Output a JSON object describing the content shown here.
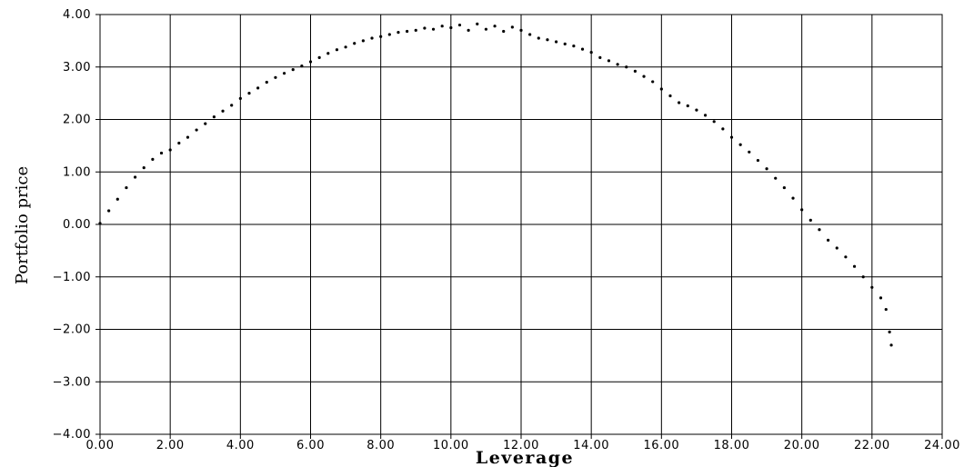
{
  "chart_data": {
    "type": "scatter",
    "title": "",
    "xlabel": "Leverage",
    "ylabel": "Portfolio  price",
    "xlim": [
      0,
      24
    ],
    "ylim": [
      -4,
      4
    ],
    "x_ticks": [
      0,
      2,
      4,
      6,
      8,
      10,
      12,
      14,
      16,
      18,
      20,
      22,
      24
    ],
    "y_ticks": [
      -4,
      -3,
      -2,
      -1,
      0,
      1,
      2,
      3,
      4
    ],
    "x_tick_labels": [
      "0.00",
      "2.00",
      "4.00",
      "6.00",
      "8.00",
      "10.00",
      "12.00",
      "14.00",
      "16.00",
      "18.00",
      "20.00",
      "22.00",
      "24.00"
    ],
    "y_tick_labels": [
      "−4.00",
      "−3.00",
      "−2.00",
      "−1.00",
      "0.00",
      "1.00",
      "2.00",
      "3.00",
      "4.00"
    ],
    "grid": true,
    "legend": "none",
    "point_color": "#000000",
    "points": [
      [
        0.0,
        0.02
      ],
      [
        0.25,
        0.26
      ],
      [
        0.5,
        0.48
      ],
      [
        0.75,
        0.7
      ],
      [
        1.0,
        0.9
      ],
      [
        1.25,
        1.08
      ],
      [
        1.5,
        1.24
      ],
      [
        1.75,
        1.36
      ],
      [
        2.0,
        1.42
      ],
      [
        2.25,
        1.55
      ],
      [
        2.5,
        1.66
      ],
      [
        2.75,
        1.8
      ],
      [
        3.0,
        1.92
      ],
      [
        3.25,
        2.05
      ],
      [
        3.5,
        2.16
      ],
      [
        3.75,
        2.27
      ],
      [
        4.0,
        2.4
      ],
      [
        4.25,
        2.5
      ],
      [
        4.5,
        2.6
      ],
      [
        4.75,
        2.71
      ],
      [
        5.0,
        2.8
      ],
      [
        5.25,
        2.88
      ],
      [
        5.5,
        2.95
      ],
      [
        5.75,
        3.02
      ],
      [
        6.0,
        3.1
      ],
      [
        6.25,
        3.18
      ],
      [
        6.5,
        3.26
      ],
      [
        6.75,
        3.33
      ],
      [
        7.0,
        3.38
      ],
      [
        7.25,
        3.45
      ],
      [
        7.5,
        3.5
      ],
      [
        7.75,
        3.55
      ],
      [
        8.0,
        3.58
      ],
      [
        8.25,
        3.62
      ],
      [
        8.5,
        3.66
      ],
      [
        8.75,
        3.68
      ],
      [
        9.0,
        3.7
      ],
      [
        9.25,
        3.74
      ],
      [
        9.5,
        3.72
      ],
      [
        9.75,
        3.78
      ],
      [
        10.0,
        3.75
      ],
      [
        10.25,
        3.8
      ],
      [
        10.5,
        3.7
      ],
      [
        10.75,
        3.82
      ],
      [
        11.0,
        3.72
      ],
      [
        11.25,
        3.78
      ],
      [
        11.5,
        3.68
      ],
      [
        11.75,
        3.76
      ],
      [
        12.0,
        3.7
      ],
      [
        12.25,
        3.62
      ],
      [
        12.5,
        3.55
      ],
      [
        12.75,
        3.52
      ],
      [
        13.0,
        3.48
      ],
      [
        13.25,
        3.44
      ],
      [
        13.5,
        3.4
      ],
      [
        13.75,
        3.34
      ],
      [
        14.0,
        3.28
      ],
      [
        14.25,
        3.18
      ],
      [
        14.5,
        3.12
      ],
      [
        14.75,
        3.05
      ],
      [
        15.0,
        3.0
      ],
      [
        15.25,
        2.92
      ],
      [
        15.5,
        2.82
      ],
      [
        15.75,
        2.72
      ],
      [
        16.0,
        2.58
      ],
      [
        16.25,
        2.45
      ],
      [
        16.5,
        2.32
      ],
      [
        16.75,
        2.26
      ],
      [
        17.0,
        2.18
      ],
      [
        17.25,
        2.08
      ],
      [
        17.5,
        1.96
      ],
      [
        17.75,
        1.82
      ],
      [
        18.0,
        1.66
      ],
      [
        18.25,
        1.52
      ],
      [
        18.5,
        1.38
      ],
      [
        18.75,
        1.22
      ],
      [
        19.0,
        1.06
      ],
      [
        19.25,
        0.88
      ],
      [
        19.5,
        0.7
      ],
      [
        19.75,
        0.5
      ],
      [
        20.0,
        0.28
      ],
      [
        20.25,
        0.08
      ],
      [
        20.5,
        -0.1
      ],
      [
        20.75,
        -0.3
      ],
      [
        21.0,
        -0.45
      ],
      [
        21.25,
        -0.62
      ],
      [
        21.5,
        -0.8
      ],
      [
        21.75,
        -1.0
      ],
      [
        22.0,
        -1.2
      ],
      [
        22.25,
        -1.4
      ],
      [
        22.4,
        -1.62
      ],
      [
        22.5,
        -2.05
      ],
      [
        22.55,
        -2.3
      ]
    ]
  }
}
